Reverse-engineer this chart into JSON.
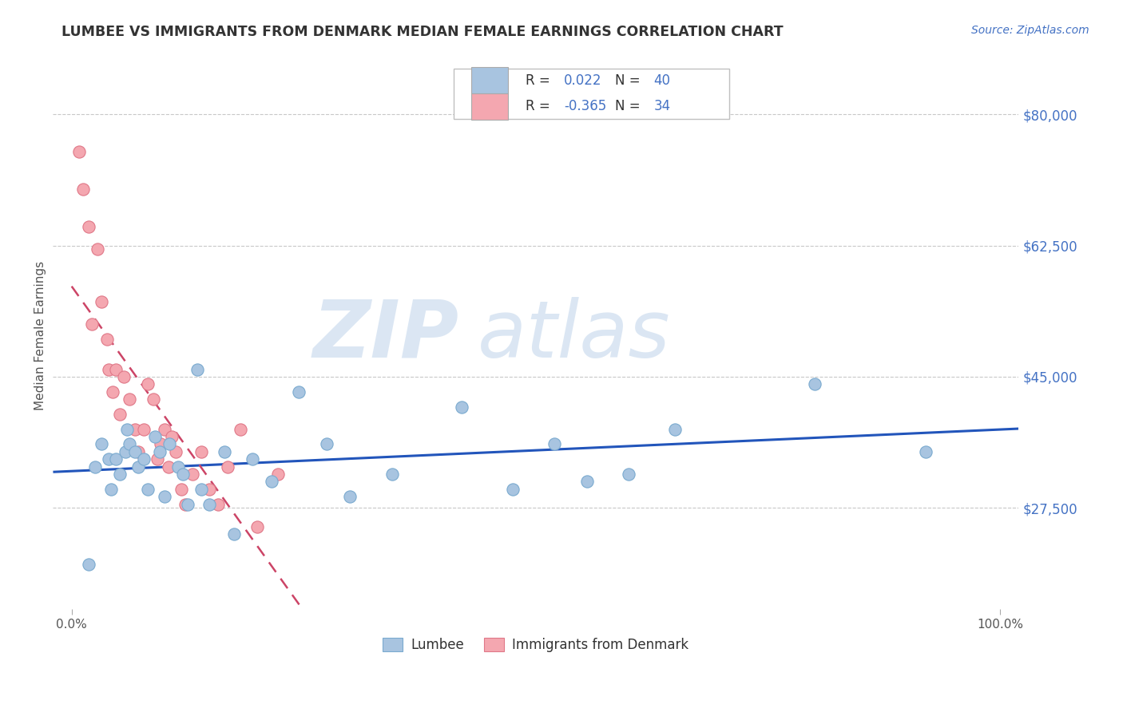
{
  "title": "LUMBEE VS IMMIGRANTS FROM DENMARK MEDIAN FEMALE EARNINGS CORRELATION CHART",
  "source": "Source: ZipAtlas.com",
  "ylabel": "Median Female Earnings",
  "watermark_top": "ZIP",
  "watermark_bot": "atlas",
  "xlim": [
    -0.02,
    1.02
  ],
  "ylim": [
    14000,
    87000
  ],
  "yticks": [
    27500,
    45000,
    62500,
    80000
  ],
  "ytick_labels": [
    "$27,500",
    "$45,000",
    "$62,500",
    "$80,000"
  ],
  "xtick_labels": [
    "0.0%",
    "100.0%"
  ],
  "bg_color": "#ffffff",
  "grid_color": "#c8c8c8",
  "lumbee_face": "#a8c4e0",
  "lumbee_edge": "#7aaacf",
  "denmark_face": "#f4a7b0",
  "denmark_edge": "#e07888",
  "lumbee_line_color": "#2255bb",
  "denmark_line_color": "#cc4466",
  "title_color": "#333333",
  "ylabel_color": "#555555",
  "ytick_color": "#4472c4",
  "xtick_color": "#555555",
  "source_color": "#4472c4",
  "legend_r_color": "#4472c4",
  "legend_n_color": "#333333",
  "lumbee_x": [
    0.018,
    0.025,
    0.032,
    0.04,
    0.042,
    0.048,
    0.052,
    0.058,
    0.06,
    0.062,
    0.068,
    0.072,
    0.078,
    0.082,
    0.09,
    0.095,
    0.1,
    0.105,
    0.115,
    0.12,
    0.125,
    0.135,
    0.14,
    0.148,
    0.165,
    0.175,
    0.195,
    0.215,
    0.245,
    0.275,
    0.3,
    0.345,
    0.42,
    0.475,
    0.52,
    0.555,
    0.6,
    0.65,
    0.8,
    0.92
  ],
  "lumbee_y": [
    20000,
    33000,
    36000,
    34000,
    30000,
    34000,
    32000,
    35000,
    38000,
    36000,
    35000,
    33000,
    34000,
    30000,
    37000,
    35000,
    29000,
    36000,
    33000,
    32000,
    28000,
    46000,
    30000,
    28000,
    35000,
    24000,
    34000,
    31000,
    43000,
    36000,
    29000,
    32000,
    41000,
    30000,
    36000,
    31000,
    32000,
    38000,
    44000,
    35000
  ],
  "denmark_x": [
    0.008,
    0.012,
    0.018,
    0.022,
    0.028,
    0.032,
    0.038,
    0.04,
    0.044,
    0.048,
    0.052,
    0.056,
    0.062,
    0.068,
    0.072,
    0.078,
    0.082,
    0.088,
    0.092,
    0.096,
    0.1,
    0.104,
    0.108,
    0.112,
    0.118,
    0.122,
    0.13,
    0.14,
    0.148,
    0.158,
    0.168,
    0.182,
    0.2,
    0.222
  ],
  "denmark_y": [
    75000,
    70000,
    65000,
    52000,
    62000,
    55000,
    50000,
    46000,
    43000,
    46000,
    40000,
    45000,
    42000,
    38000,
    35000,
    38000,
    44000,
    42000,
    34000,
    36000,
    38000,
    33000,
    37000,
    35000,
    30000,
    28000,
    32000,
    35000,
    30000,
    28000,
    33000,
    38000,
    25000,
    32000
  ]
}
